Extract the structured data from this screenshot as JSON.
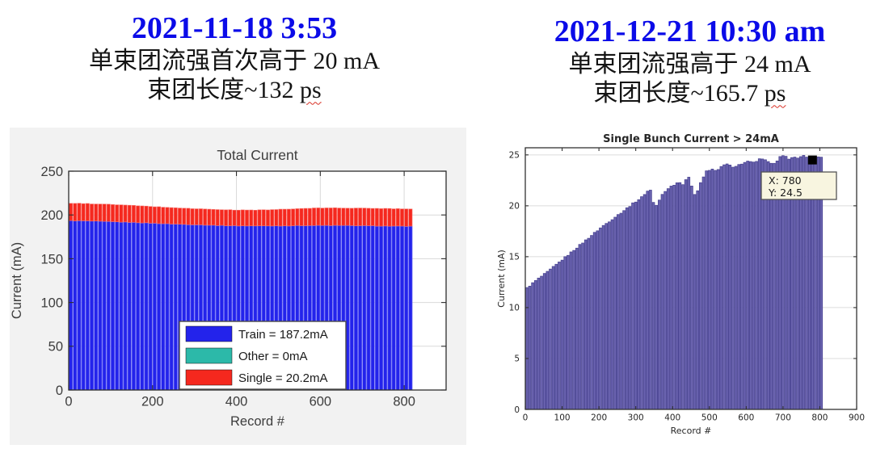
{
  "left_panel": {
    "header": {
      "date": "2021-11-18 3:53",
      "line2": "单束团流强首次高于 20 mA",
      "line3_prefix": "束团长度~132 ",
      "line3_unit": "ps"
    }
  },
  "right_panel": {
    "header": {
      "date": "2021-12-21 10:30 am",
      "line2": "单束团流强高于 24 mA",
      "line3_prefix": "束团长度~165.7 ",
      "line3_unit": "ps"
    }
  },
  "accent_colors": {
    "header_blue": "#0B0BE8",
    "squiggle_red": "#d93025"
  },
  "chart_data": [
    {
      "type": "bar",
      "variant": "stacked",
      "title": "Total Current",
      "xlabel": "Record #",
      "ylabel": "Current (mA)",
      "xlim": [
        0,
        900
      ],
      "ylim": [
        0,
        250
      ],
      "xticks": [
        0,
        200,
        400,
        600,
        800
      ],
      "yticks": [
        0,
        50,
        100,
        150,
        200,
        250
      ],
      "grid": "both",
      "legend_position": "south-inside",
      "bar_step": 10,
      "bar_jitter": 0.25,
      "x_max_data": 820,
      "colors": {
        "train": "#2323EB",
        "train_edge": "#6A6AF4",
        "single": "#F5281E",
        "single_edge": "#F8736C",
        "other": "#2CB9A9",
        "figure_bg": "#F2F2F2",
        "plot_bg": "#FFFFFF",
        "axis": "#2E2E2E",
        "grid": "#D9D9D9",
        "text": "#3D3D3D"
      },
      "legend": [
        {
          "label": "Train = 187.2mA",
          "color": "#2323EB"
        },
        {
          "label": "Other = 0mA",
          "color": "#2CB9A9"
        },
        {
          "label": "Single = 20.2mA",
          "color": "#F5281E"
        }
      ],
      "summary": {
        "train_mA": 187.2,
        "other_mA": 0,
        "single_mA": 20.2
      },
      "profile": {
        "x": [
          0,
          40,
          80,
          120,
          160,
          200,
          240,
          280,
          320,
          360,
          400,
          440,
          480,
          520,
          560,
          600,
          640,
          680,
          720,
          760,
          800,
          820
        ],
        "train": [
          193.5,
          193.2,
          192.6,
          192.0,
          191.4,
          190.6,
          189.8,
          189.2,
          188.6,
          188.0,
          187.6,
          187.5,
          187.5,
          187.6,
          187.9,
          188.0,
          188.0,
          187.8,
          187.6,
          187.3,
          187.1,
          187.0
        ],
        "total": [
          213.5,
          213.0,
          212.4,
          211.6,
          210.6,
          209.6,
          208.6,
          207.6,
          206.8,
          206.1,
          205.6,
          205.6,
          206.0,
          206.6,
          207.4,
          208.0,
          208.0,
          207.8,
          207.6,
          207.3,
          207.1,
          207.0
        ]
      }
    },
    {
      "type": "bar",
      "variant": "simple",
      "title": "Single Bunch Current > 24mA",
      "xlabel": "Record #",
      "ylabel": "Current (mA)",
      "xlim": [
        0,
        900
      ],
      "ylim": [
        0,
        25.7
      ],
      "xticks": [
        0,
        100,
        200,
        300,
        400,
        500,
        600,
        700,
        800,
        900
      ],
      "yticks": [
        0,
        5,
        10,
        15,
        20,
        25
      ],
      "grid": "y",
      "bar_step": 8,
      "bar_jitter": 0.07,
      "x_max_data": 805,
      "colors": {
        "bar": "#6A63AF",
        "bar_edge": "#4B4593",
        "figure_bg": "#FFFFFF",
        "plot_bg": "#FFFFFF",
        "axis": "#333333",
        "grid": "#DCDCDC",
        "text": "#262626",
        "datatip_bg": "#F8F5E0",
        "datatip_border": "#555555",
        "marker": "#000000"
      },
      "datatip": {
        "lines": [
          "X: 780",
          "Y: 24.5"
        ],
        "x": 780,
        "y": 24.5
      },
      "profile": {
        "x": [
          0,
          10,
          30,
          60,
          90,
          120,
          150,
          180,
          210,
          240,
          270,
          295,
          315,
          330,
          342,
          350,
          358,
          372,
          390,
          405,
          418,
          428,
          440,
          448,
          456,
          466,
          478,
          492,
          505,
          520,
          535,
          550,
          565,
          580,
          595,
          610,
          625,
          640,
          655,
          668,
          680,
          692,
          705,
          718,
          730,
          742,
          755,
          768,
          780,
          792,
          805
        ],
        "y": [
          11.8,
          12.1,
          12.7,
          13.5,
          14.4,
          15.3,
          16.2,
          17.1,
          18.0,
          18.8,
          19.6,
          20.3,
          20.8,
          21.4,
          21.6,
          19.9,
          20.1,
          21.1,
          21.8,
          22.1,
          22.4,
          22.1,
          22.7,
          23.0,
          21.0,
          21.3,
          22.4,
          23.4,
          23.6,
          23.4,
          23.9,
          24.2,
          23.7,
          24.0,
          24.3,
          24.4,
          24.2,
          24.7,
          24.4,
          24.1,
          24.3,
          24.8,
          24.9,
          24.6,
          24.8,
          24.7,
          24.9,
          24.7,
          24.5,
          24.9,
          24.7
        ]
      }
    }
  ]
}
